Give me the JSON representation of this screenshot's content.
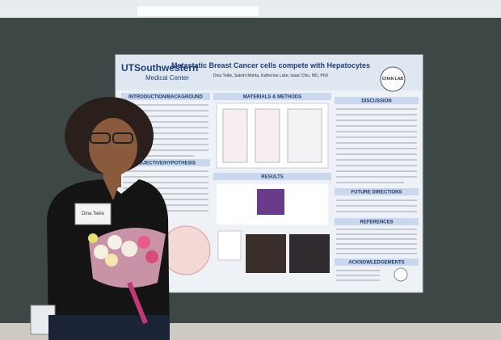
{
  "header": {
    "logo": "UTSouthwestern",
    "logo_sub": "Medical Center",
    "title": "Metastatic Breast Cancer cells compete with Hepatocytes",
    "authors": "Dina Tekle, Sakshi Mohta, Katherine Luke, Isaac Chiu, MD, PhD",
    "lab": "CHAN LAB"
  },
  "sections": [
    "INTRODUCTION/BACKGROUND",
    "OBJECTIVE/HYPOTHESIS",
    "MATERIALS & METHODS",
    "RESULTS",
    "DISCUSSION",
    "FUTURE DIRECTIONS",
    "REFERENCES",
    "ACKNOWLEDGEMENTS"
  ],
  "name_tag": "Dina Tekle"
}
